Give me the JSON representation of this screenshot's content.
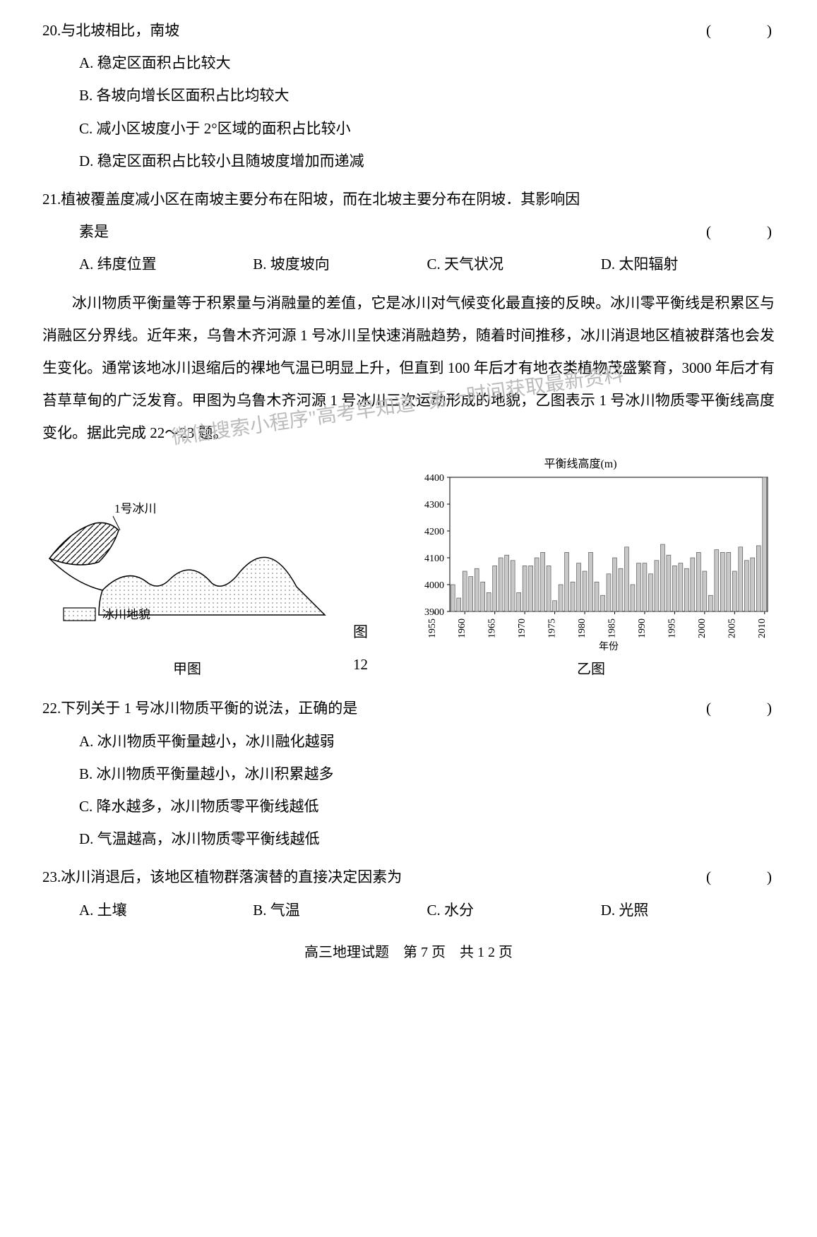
{
  "q20": {
    "num": "20.",
    "stem": "与北坡相比，南坡",
    "paren": "(　　　)",
    "opts": {
      "A": "A. 稳定区面积占比较大",
      "B": "B. 各坡向增长区面积占比均较大",
      "C": "C. 减小区坡度小于 2°区域的面积占比较小",
      "D": "D. 稳定区面积占比较小且随坡度增加而递减"
    }
  },
  "q21": {
    "num": "21.",
    "stem1": "植被覆盖度减小区在南坡主要分布在阳坡，而在北坡主要分布在阴坡．其影响因",
    "stem2": "素是",
    "paren": "(　　　)",
    "opts": {
      "A": "A. 纬度位置",
      "B": "B. 坡度坡向",
      "C": "C. 天气状况",
      "D": "D. 太阳辐射"
    }
  },
  "passage": "冰川物质平衡量等于积累量与消融量的差值，它是冰川对气候变化最直接的反映。冰川零平衡线是积累区与消融区分界线。近年来，乌鲁木齐河源 1 号冰川呈快速消融趋势，随着时间推移，冰川消退地区植被群落也会发生变化。通常该地冰川退缩后的裸地气温已明显上升，但直到 100 年后才有地衣类植物茂盛繁育，3000 年后才有苔草草甸的广泛发育。甲图为乌鲁木齐河源 1 号冰川三次运动形成的地貌，乙图表示 1 号冰川物质零平衡线高度变化。据此完成 22～23 题。",
  "watermark_text": "微信搜索小程序\"高考早知道\"\n第一时间获取最新资料",
  "fig_a": {
    "glacier_label": "1号冰川",
    "legend_label": "冰川地貌",
    "caption": "甲图",
    "stroke_color": "#000000",
    "fill_hatch_color": "#000000",
    "fill_dots_color": "#888888"
  },
  "fig_label_center": "图 12",
  "fig_b": {
    "title": "平衡线高度(m)",
    "legend_label": "平衡线高度",
    "x_label": "年份",
    "caption": "乙图",
    "ylim": [
      3900,
      4400
    ],
    "yticks": [
      3900,
      4000,
      4100,
      4200,
      4300,
      4400
    ],
    "xticks": [
      "1955",
      "1960",
      "1965",
      "1970",
      "1975",
      "1980",
      "1985",
      "1990",
      "1995",
      "2000",
      "2005",
      "2010"
    ],
    "years_start": 1958,
    "bar_color": "#c8c8c8",
    "bar_stroke": "#444444",
    "axis_color": "#000000",
    "grid_color": "#aaaaaa",
    "background_color": "#ffffff",
    "title_fontsize": 16,
    "tick_fontsize": 14,
    "values": [
      4000,
      3950,
      4050,
      4030,
      4060,
      4010,
      3970,
      4070,
      4100,
      4110,
      4090,
      3970,
      4070,
      4070,
      4100,
      4120,
      4070,
      3940,
      4000,
      4120,
      4010,
      4080,
      4050,
      4120,
      4010,
      3960,
      4040,
      4100,
      4060,
      4140,
      4000,
      4080,
      4080,
      4040,
      4090,
      4150,
      4110,
      4070,
      4080,
      4060,
      4100,
      4120,
      4050,
      3960,
      4130,
      4120,
      4120,
      4050,
      4140,
      4090,
      4100,
      4145,
      4400
    ]
  },
  "q22": {
    "num": "22.",
    "stem": "下列关于 1 号冰川物质平衡的说法，正确的是",
    "paren": "(　　　)",
    "opts": {
      "A": "A. 冰川物质平衡量越小，冰川融化越弱",
      "B": "B. 冰川物质平衡量越小，冰川积累越多",
      "C": "C. 降水越多，冰川物质零平衡线越低",
      "D": "D. 气温越高，冰川物质零平衡线越低"
    }
  },
  "q23": {
    "num": "23.",
    "stem": "冰川消退后，该地区植物群落演替的直接决定因素为",
    "paren": "(　　　)",
    "opts": {
      "A": "A. 土壤",
      "B": "B. 气温",
      "C": "C. 水分",
      "D": "D. 光照"
    }
  },
  "footer": "高三地理试题　第 7 页　共 1 2 页"
}
